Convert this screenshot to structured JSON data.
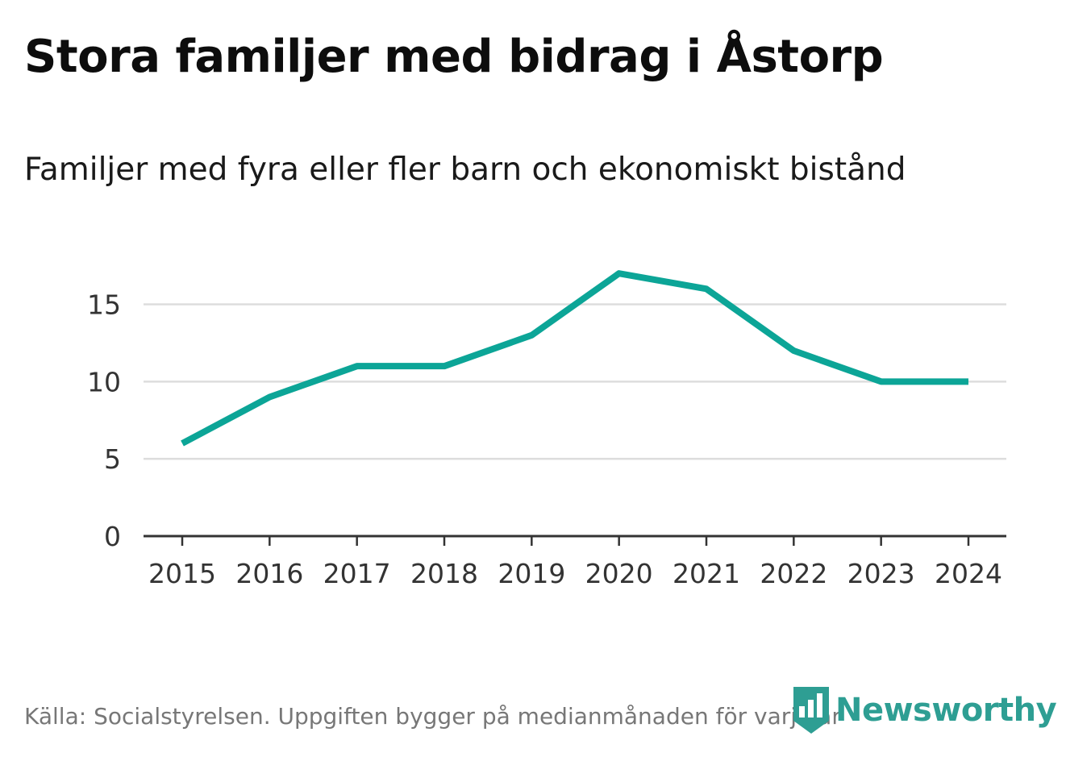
{
  "header": {
    "title": "Stora familjer med bidrag i Åstorp",
    "subtitle": "Familjer med fyra eller fler barn och ekonomiskt bistånd"
  },
  "footer": {
    "source": "Källa: Socialstyrelsen. Uppgiften bygger på medianmånaden för varje år",
    "logo_text": "Newsworthy"
  },
  "colors": {
    "line": "#0ca597",
    "grid": "#dddddd",
    "axis": "#333333",
    "brand": "#2e9e93"
  },
  "chart_data": {
    "type": "line",
    "title": "Stora familjer med bidrag i Åstorp",
    "subtitle": "Familjer med fyra eller fler barn och ekonomiskt bistånd",
    "xlabel": "",
    "ylabel": "",
    "categories": [
      "2015",
      "2016",
      "2017",
      "2018",
      "2019",
      "2020",
      "2021",
      "2022",
      "2023",
      "2024"
    ],
    "series": [
      {
        "name": "Familjer med fyra eller fler barn och ekonomiskt bistånd",
        "values": [
          6,
          9,
          11,
          11,
          13,
          17,
          16,
          12,
          10,
          10
        ]
      }
    ],
    "ylim": [
      0,
      18
    ],
    "yticks": [
      0,
      5,
      10,
      15
    ],
    "grid": true,
    "legend": "none"
  }
}
